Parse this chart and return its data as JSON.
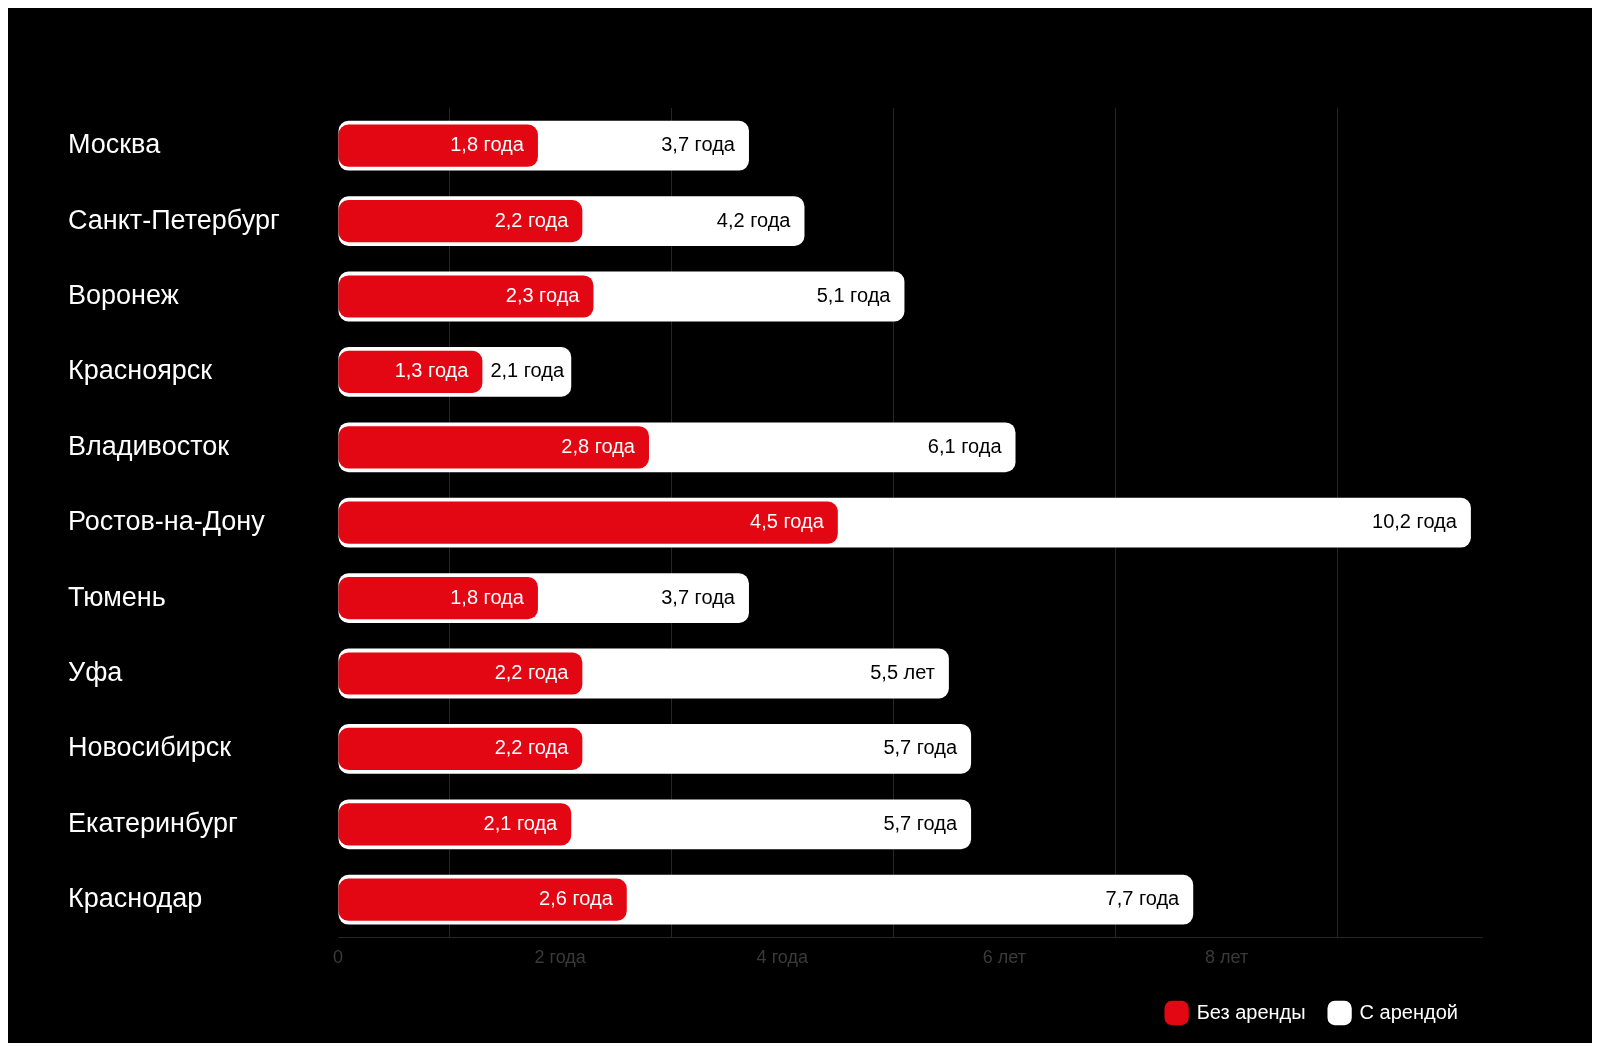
{
  "chart_data": {
    "type": "bar",
    "orientation": "horizontal",
    "categories": [
      "Москва",
      "Санкт-Петербург",
      "Воронеж",
      "Красноярск",
      "Владивосток",
      "Ростов-на-Дону",
      "Тюмень",
      "Уфа",
      "Новосибирск",
      "Екатеринбург",
      "Краснодар"
    ],
    "series": [
      {
        "name": "Без аренды",
        "color": "#e30613",
        "values": [
          1.8,
          2.2,
          2.3,
          1.3,
          2.8,
          4.5,
          1.8,
          2.2,
          2.2,
          2.1,
          2.6
        ],
        "value_labels": [
          "1,8 года",
          "2,2 года",
          "2,3 года",
          "1,3 года",
          "2,8 года",
          "4,5 года",
          "1,8 года",
          "2,2 года",
          "2,2 года",
          "2,1 года",
          "2,6 года"
        ]
      },
      {
        "name": "С арендой",
        "color": "#ffffff",
        "values": [
          3.7,
          4.2,
          5.1,
          2.1,
          6.1,
          10.2,
          3.7,
          5.5,
          5.7,
          5.7,
          7.7
        ],
        "value_labels": [
          "3,7 года",
          "4,2 года",
          "5,1 года",
          "2,1 года",
          "6,1 года",
          "10,2 года",
          "3,7 года",
          "5,5 лет",
          "5,7 года",
          "5,7 года",
          "7,7 года"
        ]
      }
    ],
    "xlim": [
      0,
      10.3
    ],
    "xticks": [
      {
        "value": 0,
        "label": "0"
      },
      {
        "value": 1,
        "label": null
      },
      {
        "value": 2,
        "label": "2 года"
      },
      {
        "value": 3,
        "label": null
      },
      {
        "value": 4,
        "label": "4 года"
      },
      {
        "value": 5,
        "label": null
      },
      {
        "value": 6,
        "label": "6 лет"
      },
      {
        "value": 7,
        "label": null
      },
      {
        "value": 8,
        "label": "8 лет"
      },
      {
        "value": 9,
        "label": null
      }
    ],
    "grid": "x",
    "legend": "bottom right"
  }
}
